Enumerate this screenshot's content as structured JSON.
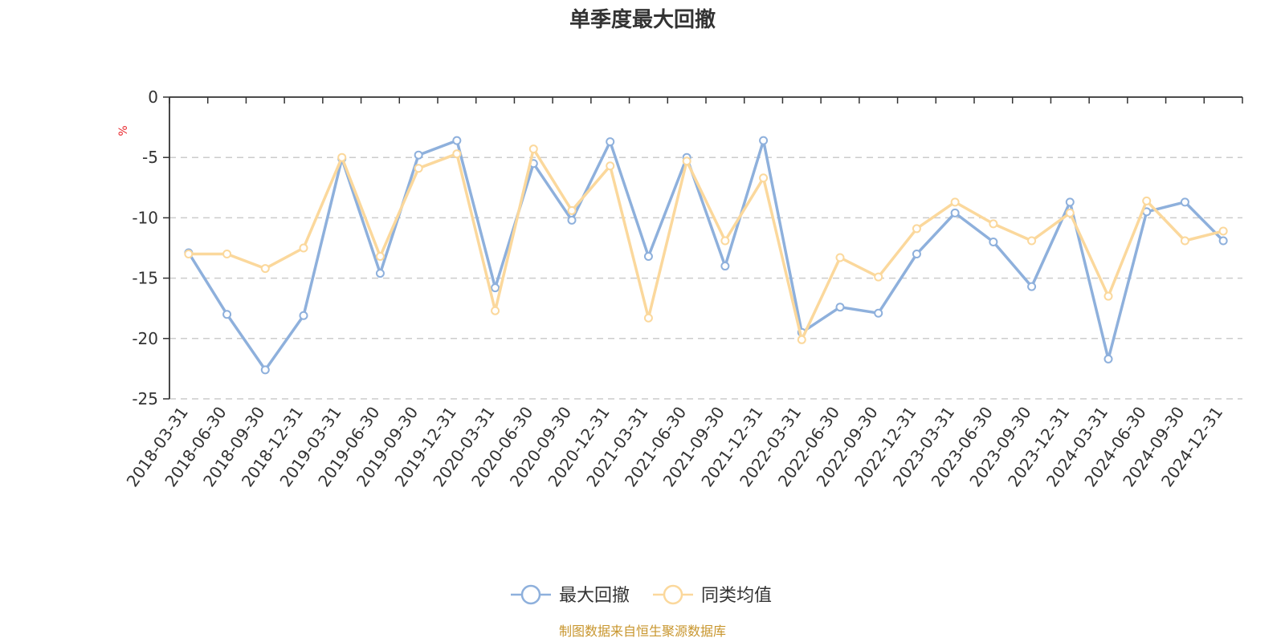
{
  "chart_data": {
    "type": "line",
    "title": "单季度最大回撤",
    "ylabel": "%",
    "xlabel": "",
    "ylim": [
      -25,
      0
    ],
    "yticks": [
      0,
      -5,
      -10,
      -15,
      -20,
      -25
    ],
    "grid": true,
    "legend_position": "bottom-center",
    "categories": [
      "2018-03-31",
      "2018-06-30",
      "2018-09-30",
      "2018-12-31",
      "2019-03-31",
      "2019-06-30",
      "2019-09-30",
      "2019-12-31",
      "2020-03-31",
      "2020-06-30",
      "2020-09-30",
      "2020-12-31",
      "2021-03-31",
      "2021-06-30",
      "2021-09-30",
      "2021-12-31",
      "2022-03-31",
      "2022-06-30",
      "2022-09-30",
      "2022-12-31",
      "2023-03-31",
      "2023-06-30",
      "2023-09-30",
      "2023-12-31",
      "2024-03-31",
      "2024-06-30",
      "2024-09-30",
      "2024-12-31"
    ],
    "series": [
      {
        "name": "最大回撤",
        "color": "#8eb0dc",
        "values": [
          -12.9,
          -18.0,
          -22.6,
          -18.1,
          -5.1,
          -14.6,
          -4.8,
          -3.6,
          -15.8,
          -5.5,
          -10.2,
          -3.7,
          -13.2,
          -5.0,
          -14.0,
          -3.6,
          -19.5,
          -17.4,
          -17.9,
          -13.0,
          -9.6,
          -12.0,
          -15.7,
          -8.7,
          -21.7,
          -9.5,
          -8.7,
          -11.9
        ]
      },
      {
        "name": "同类均值",
        "color": "#fbd89c",
        "values": [
          -13.0,
          -13.0,
          -14.2,
          -12.5,
          -5.0,
          -13.2,
          -5.9,
          -4.7,
          -17.7,
          -4.3,
          -9.4,
          -5.7,
          -18.3,
          -5.3,
          -11.9,
          -6.7,
          -20.1,
          -13.3,
          -14.9,
          -10.9,
          -8.7,
          -10.5,
          -11.9,
          -9.6,
          -16.5,
          -8.6,
          -11.9,
          -11.1
        ]
      }
    ]
  },
  "unit_color": "#e8262b",
  "source": {
    "text": "制图数据来自恒生聚源数据库",
    "color": "#c8962e"
  }
}
